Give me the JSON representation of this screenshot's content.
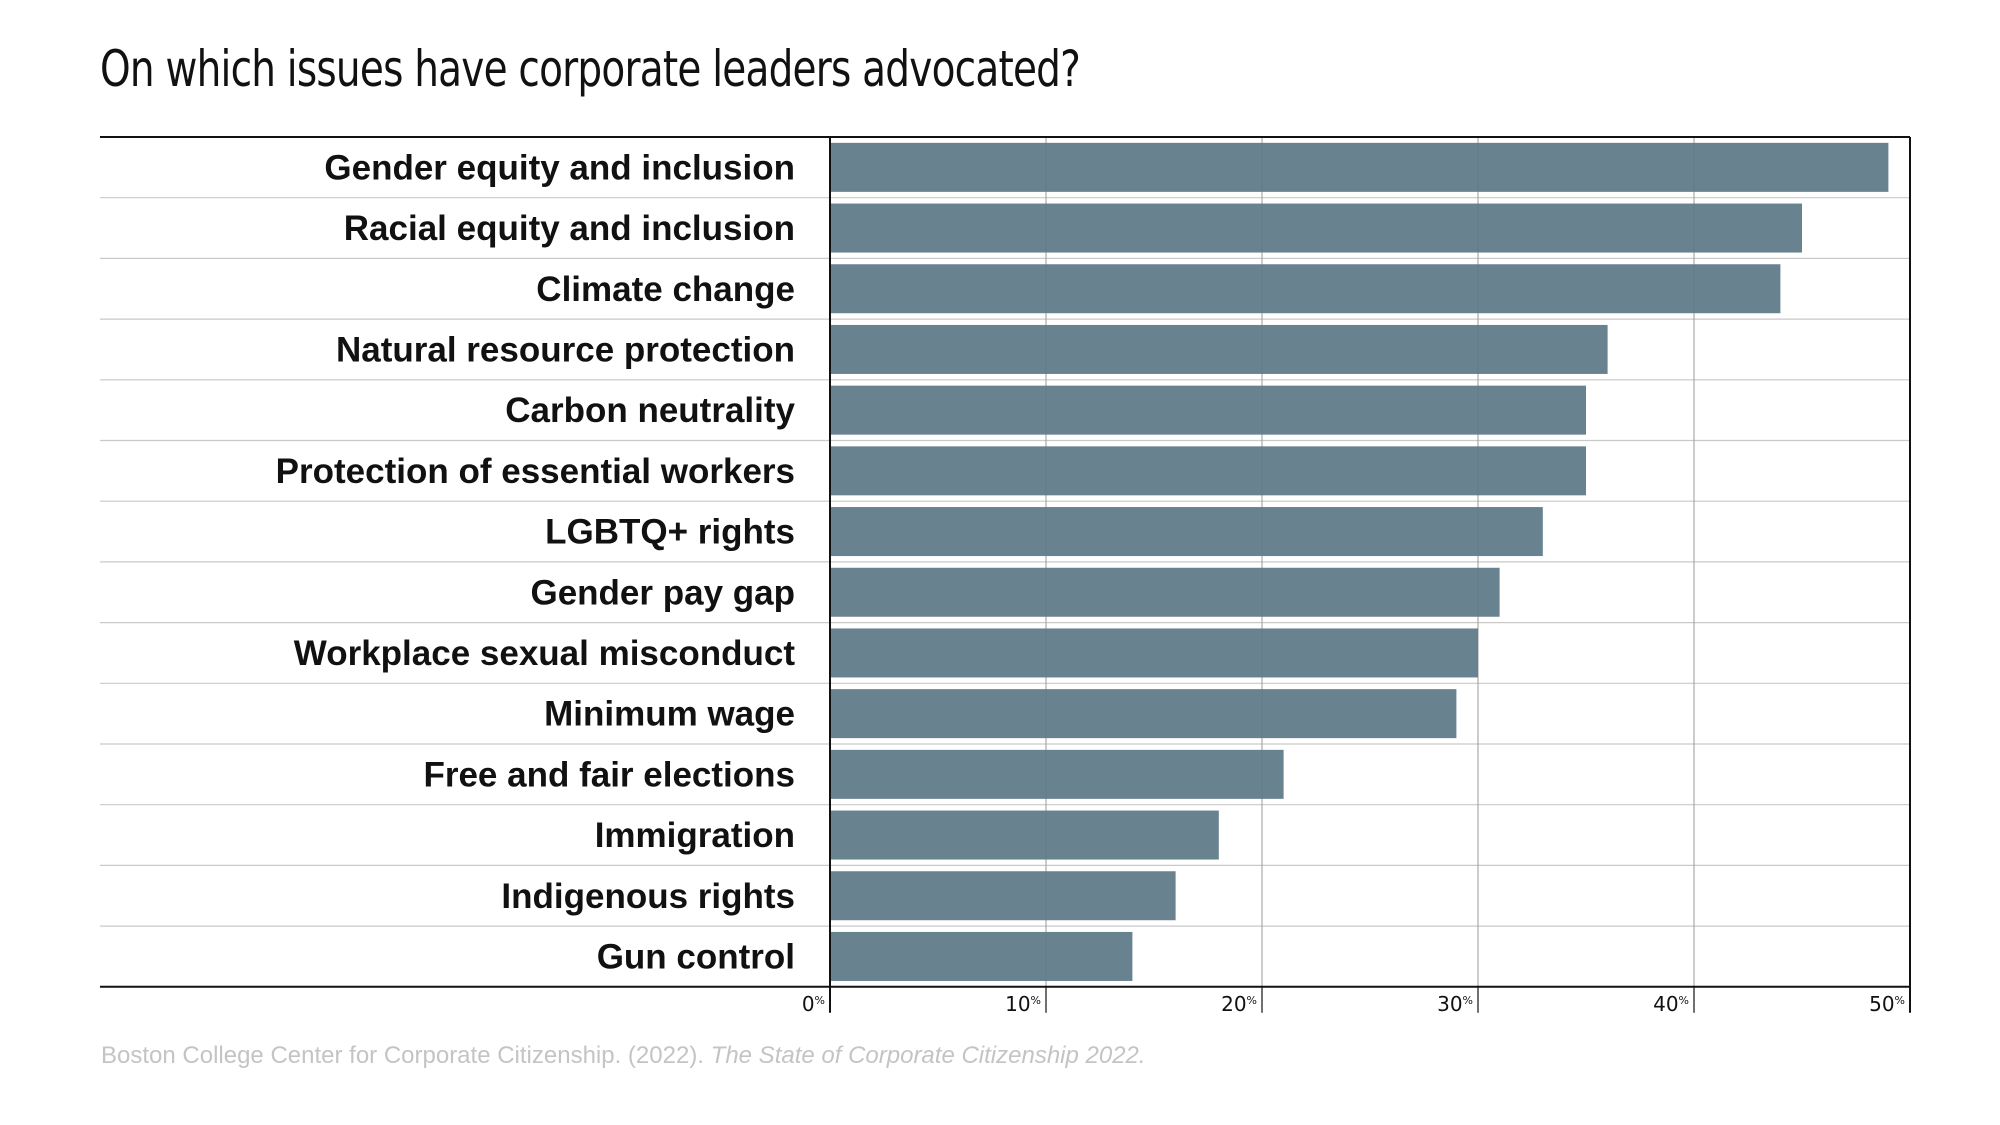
{
  "chart_data": {
    "type": "bar",
    "orientation": "horizontal",
    "title": "On which issues have corporate leaders advocated?",
    "categories": [
      "Gender equity and inclusion",
      "Racial equity and inclusion",
      "Climate change",
      "Natural resource protection",
      "Carbon neutrality",
      "Protection of essential workers",
      "LGBTQ+ rights",
      "Gender pay gap",
      "Workplace sexual misconduct",
      "Minimum wage",
      "Free and fair elections",
      "Immigration",
      "Indigenous rights",
      "Gun control"
    ],
    "values": [
      49,
      45,
      44,
      36,
      35,
      35,
      33,
      31,
      30,
      29,
      21,
      18,
      16,
      14
    ],
    "xlim": [
      0,
      50
    ],
    "xticks": [
      {
        "value": 0,
        "number": "0",
        "unit": "%"
      },
      {
        "value": 10,
        "number": "10",
        "unit": "%"
      },
      {
        "value": 20,
        "number": "20",
        "unit": "%"
      },
      {
        "value": 30,
        "number": "30",
        "unit": "%"
      },
      {
        "value": 40,
        "number": "40",
        "unit": "%"
      },
      {
        "value": 50,
        "number": "50",
        "unit": "%"
      }
    ],
    "xlabel": "",
    "ylabel": "",
    "grid": true,
    "bar_color": "#607a88"
  },
  "source": {
    "text": "Boston College Center for Corporate Citizenship. (2022). ",
    "italic_text": "The State of Corporate Citizenship 2022."
  }
}
